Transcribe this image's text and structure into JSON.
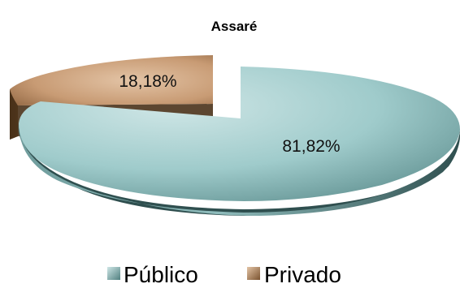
{
  "chart_data": {
    "type": "pie",
    "style": "3d-exploded",
    "title": "Assaré",
    "slices": [
      {
        "name": "Público",
        "value": 81.82,
        "label": "81,82%",
        "color": "#9fcbcb"
      },
      {
        "name": "Privado",
        "value": 18.18,
        "label": "18,18%",
        "color": "#c89b74"
      }
    ],
    "legend": {
      "placement": "bottom",
      "items": [
        {
          "name": "Público",
          "color": "#9fcbcb"
        },
        {
          "name": "Privado",
          "color": "#c89b74"
        }
      ]
    }
  }
}
